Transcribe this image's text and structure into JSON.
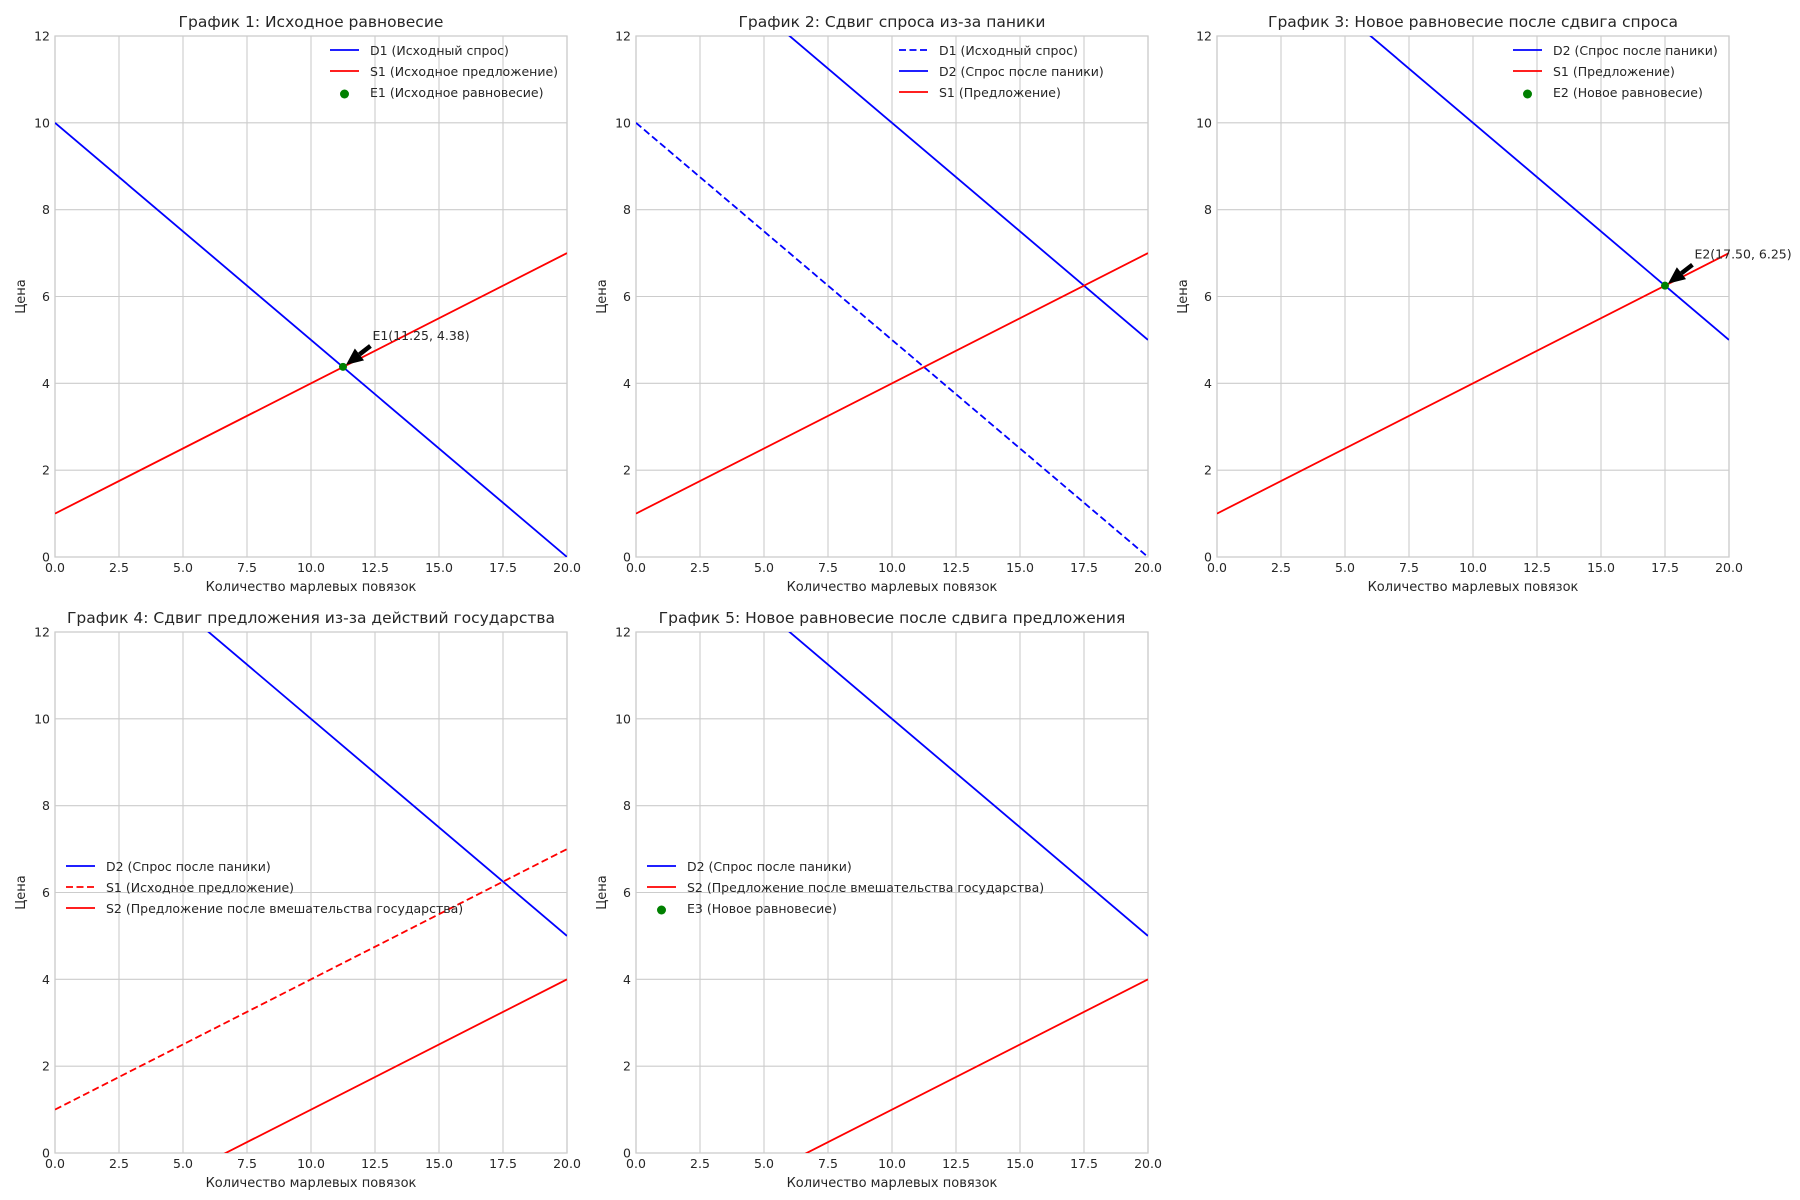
{
  "figure": {
    "colors": {
      "blue": "#0000ff",
      "red": "#ff0000",
      "green": "#008000",
      "grid": "#cccccc",
      "text": "#262626"
    }
  },
  "chart_data": [
    {
      "type": "line",
      "title": "График 1: Исходное равновесие",
      "xlabel": "Количество марлевых повязок",
      "ylabel": "Цена",
      "xlim": [
        0,
        20
      ],
      "ylim": [
        0,
        12
      ],
      "xticks": [
        "0.0",
        "2.5",
        "5.0",
        "7.5",
        "10.0",
        "12.5",
        "15.0",
        "17.5",
        "20.0"
      ],
      "yticks": [
        "0",
        "2",
        "4",
        "6",
        "8",
        "10",
        "12"
      ],
      "grid": true,
      "legend_position": "top-right",
      "series": [
        {
          "name": "D1 (Исходный спрос)",
          "color": "#0000ff",
          "style": "solid",
          "x": [
            0,
            20
          ],
          "y": [
            10,
            0
          ]
        },
        {
          "name": "S1 (Исходное предложение)",
          "color": "#ff0000",
          "style": "solid",
          "x": [
            0,
            20
          ],
          "y": [
            1,
            7
          ]
        }
      ],
      "points": [
        {
          "name": "E1 (Исходное равновесие)",
          "color": "#008000",
          "x": 11.25,
          "y": 4.38
        }
      ],
      "annotations": [
        {
          "text": "E1(11.25, 4.38)",
          "x": 11.25,
          "y": 4.38,
          "text_x": 12.4,
          "text_y": 5.0
        }
      ]
    },
    {
      "type": "line",
      "title": "График 2: Сдвиг спроса из-за паники",
      "xlabel": "Количество марлевых повязок",
      "ylabel": "Цена",
      "xlim": [
        0,
        20
      ],
      "ylim": [
        0,
        12
      ],
      "xticks": [
        "0.0",
        "2.5",
        "5.0",
        "7.5",
        "10.0",
        "12.5",
        "15.0",
        "17.5",
        "20.0"
      ],
      "yticks": [
        "0",
        "2",
        "4",
        "6",
        "8",
        "10",
        "12"
      ],
      "grid": true,
      "legend_position": "top-right",
      "series": [
        {
          "name": "D1 (Исходный спрос)",
          "color": "#0000ff",
          "style": "dashed",
          "x": [
            0,
            20
          ],
          "y": [
            10,
            0
          ]
        },
        {
          "name": "D2 (Спрос после паники)",
          "color": "#0000ff",
          "style": "solid",
          "x": [
            0,
            20
          ],
          "y": [
            15,
            5
          ]
        },
        {
          "name": "S1 (Предложение)",
          "color": "#ff0000",
          "style": "solid",
          "x": [
            0,
            20
          ],
          "y": [
            1,
            7
          ]
        }
      ],
      "points": [],
      "annotations": []
    },
    {
      "type": "line",
      "title": "График 3: Новое равновесие после сдвига спроса",
      "xlabel": "Количество марлевых повязок",
      "ylabel": "Цена",
      "xlim": [
        0,
        20
      ],
      "ylim": [
        0,
        12
      ],
      "xticks": [
        "0.0",
        "2.5",
        "5.0",
        "7.5",
        "10.0",
        "12.5",
        "15.0",
        "17.5",
        "20.0"
      ],
      "yticks": [
        "0",
        "2",
        "4",
        "6",
        "8",
        "10",
        "12"
      ],
      "grid": true,
      "legend_position": "top-right",
      "series": [
        {
          "name": "D2 (Спрос после паники)",
          "color": "#0000ff",
          "style": "solid",
          "x": [
            0,
            20
          ],
          "y": [
            15,
            5
          ]
        },
        {
          "name": "S1 (Предложение)",
          "color": "#ff0000",
          "style": "solid",
          "x": [
            0,
            20
          ],
          "y": [
            1,
            7
          ]
        }
      ],
      "points": [
        {
          "name": "E2 (Новое равновесие)",
          "color": "#008000",
          "x": 17.5,
          "y": 6.25
        }
      ],
      "annotations": [
        {
          "text": "E2(17.50, 6.25)",
          "x": 17.5,
          "y": 6.25,
          "text_x": 18.65,
          "text_y": 6.87
        }
      ]
    },
    {
      "type": "line",
      "title": "График 4: Сдвиг предложения из-за действий государства",
      "xlabel": "Количество марлевых повязок",
      "ylabel": "Цена",
      "xlim": [
        0,
        20
      ],
      "ylim": [
        0,
        12
      ],
      "xticks": [
        "0.0",
        "2.5",
        "5.0",
        "7.5",
        "10.0",
        "12.5",
        "15.0",
        "17.5",
        "20.0"
      ],
      "yticks": [
        "0",
        "2",
        "4",
        "6",
        "8",
        "10",
        "12"
      ],
      "grid": true,
      "legend_position": "center-left",
      "series": [
        {
          "name": "D2 (Спрос после паники)",
          "color": "#0000ff",
          "style": "solid",
          "x": [
            0,
            20
          ],
          "y": [
            15,
            5
          ]
        },
        {
          "name": "S1 (Исходное предложение)",
          "color": "#ff0000",
          "style": "dashed",
          "x": [
            0,
            20
          ],
          "y": [
            1,
            7
          ]
        },
        {
          "name": "S2 (Предложение после вмешательства государства)",
          "color": "#ff0000",
          "style": "solid",
          "x": [
            0,
            20
          ],
          "y": [
            -2,
            4
          ]
        }
      ],
      "points": [],
      "annotations": []
    },
    {
      "type": "line",
      "title": "График 5: Новое равновесие после сдвига предложения",
      "xlabel": "Количество марлевых повязок",
      "ylabel": "Цена",
      "xlim": [
        0,
        20
      ],
      "ylim": [
        0,
        12
      ],
      "xticks": [
        "0.0",
        "2.5",
        "5.0",
        "7.5",
        "10.0",
        "12.5",
        "15.0",
        "17.5",
        "20.0"
      ],
      "yticks": [
        "0",
        "2",
        "4",
        "6",
        "8",
        "10",
        "12"
      ],
      "grid": true,
      "legend_position": "center-left",
      "series": [
        {
          "name": "D2 (Спрос после паники)",
          "color": "#0000ff",
          "style": "solid",
          "x": [
            0,
            20
          ],
          "y": [
            15,
            5
          ]
        },
        {
          "name": "S2 (Предложение после вмешательства государства)",
          "color": "#ff0000",
          "style": "solid",
          "x": [
            0,
            20
          ],
          "y": [
            -2,
            4
          ]
        }
      ],
      "points": [],
      "legend_extra": [
        {
          "name": "E3 (Новое равновесие)",
          "color": "#008000"
        }
      ],
      "annotations": []
    }
  ]
}
